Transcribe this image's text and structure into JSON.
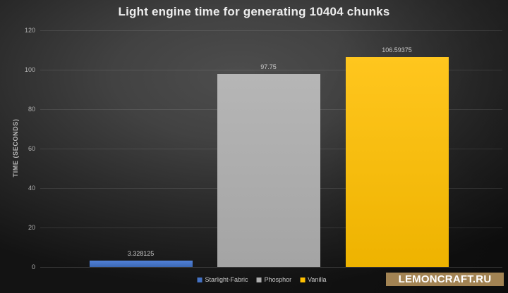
{
  "title": "Light engine time for generating 10404 chunks",
  "watermark": {
    "text": "LEMONCRAFT.RU",
    "bg": "#a28353",
    "fg": "#ffffff"
  },
  "chart_data": {
    "type": "bar",
    "title": "Light engine time for generating 10404 chunks",
    "xlabel": "",
    "ylabel": "TIME (SECONDS)",
    "ylim": [
      0,
      120
    ],
    "yticks": [
      0,
      20,
      40,
      60,
      80,
      100,
      120
    ],
    "grid": true,
    "legend_position": "bottom",
    "categories": [
      "Starlight-Fabric",
      "Phosphor",
      "Vanilla"
    ],
    "values": [
      3.328125,
      97.75,
      106.59375
    ],
    "value_labels": [
      "3.328125",
      "97.75",
      "106.59375"
    ],
    "colors": [
      "#4472c4",
      "#aeaeae",
      "#ffc000"
    ],
    "bar_gradients": [
      [
        "#5181d8",
        "#3c68b4"
      ],
      [
        "#b6b6b6",
        "#a4a4a4"
      ],
      [
        "#ffc61e",
        "#eeb300"
      ]
    ]
  }
}
